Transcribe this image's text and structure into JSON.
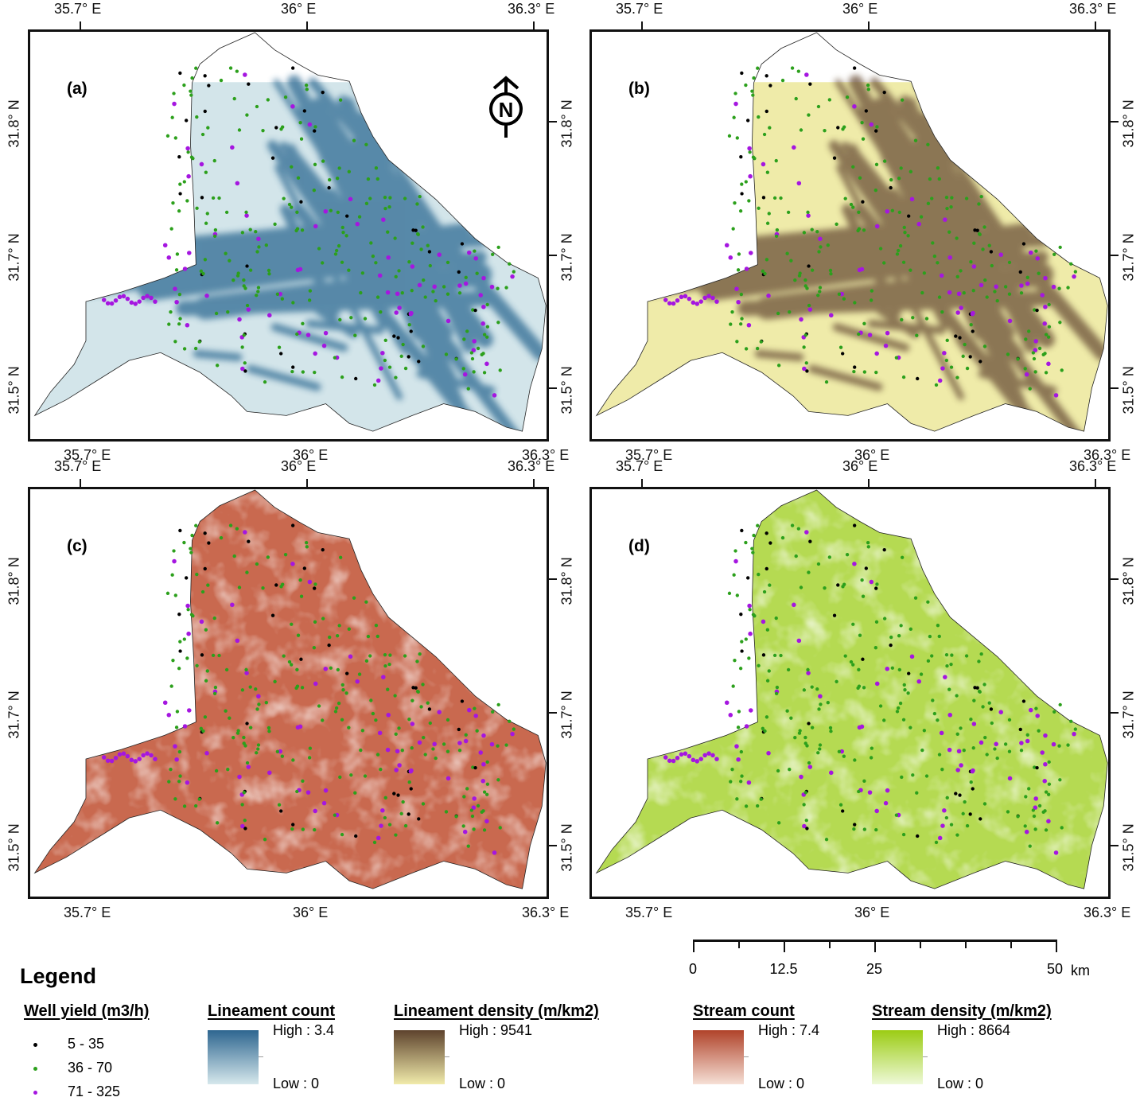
{
  "panels": [
    {
      "label": "(a)",
      "layer": "lineament-count",
      "colors": {
        "base": "#d3e5ea",
        "mark": "#2f6a93"
      }
    },
    {
      "label": "(b)",
      "layer": "lineament-density",
      "colors": {
        "base": "#efeba9",
        "mark": "#6a4f37"
      }
    },
    {
      "label": "(c)",
      "layer": "stream-count",
      "colors": {
        "base": "#c9694f",
        "light": "#f3dccf"
      }
    },
    {
      "label": "(d)",
      "layer": "stream-density",
      "colors": {
        "base": "#b5da52",
        "light": "#e6f5c0"
      }
    }
  ],
  "axes": {
    "lon_labels": [
      "35.7° E",
      "36° E",
      "36.3° E"
    ],
    "lat_labels": [
      "31.8° N",
      "31.7° N",
      "31.5° N"
    ]
  },
  "north_arrow": {
    "letter": "N"
  },
  "scale_bar": {
    "labels": [
      "0",
      "12.5",
      "25",
      "50"
    ],
    "unit": "km"
  },
  "legend": {
    "title": "Legend",
    "well_yield": {
      "title": "Well yield (m3/h)",
      "classes": [
        {
          "label": "5 - 35",
          "color": "#000000"
        },
        {
          "label": "36 - 70",
          "color": "#2ca01c"
        },
        {
          "label": "71 - 325",
          "color": "#a516e0"
        }
      ]
    },
    "ramps": [
      {
        "title": "Lineament count",
        "high": "High : 3.4",
        "low": "Low : 0",
        "color_high": "#2e6690",
        "color_low": "#d6e8ec"
      },
      {
        "title": "Lineament density (m/km2)",
        "high": "High : 9541",
        "low": "Low : 0",
        "color_high": "#5e432d",
        "color_low": "#f1ebab"
      },
      {
        "title": "Stream count",
        "high": "High : 7.4",
        "low": "Low : 0",
        "color_high": "#b0432a",
        "color_low": "#f6e0d6"
      },
      {
        "title": "Stream density (m/km2)",
        "high": "High : 8664",
        "low": "Low : 0",
        "color_high": "#9ccc14",
        "color_low": "#eef9d8"
      }
    ]
  }
}
